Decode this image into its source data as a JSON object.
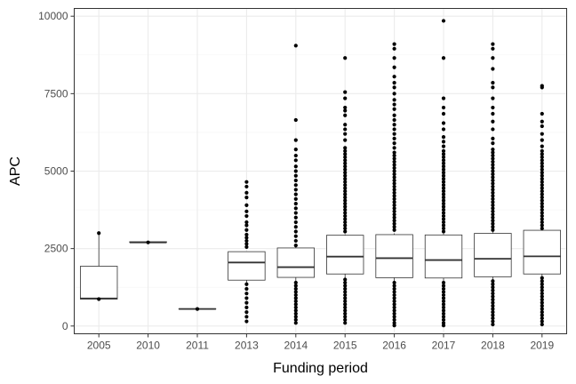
{
  "chart_data": {
    "type": "boxplot",
    "xlabel": "Funding period",
    "ylabel": "APC",
    "ylim": [
      -250,
      10250
    ],
    "y_ticks": [
      0,
      2500,
      5000,
      7500,
      10000
    ],
    "y_tick_labels": [
      "0",
      "2500",
      "5000",
      "7500",
      "10000"
    ],
    "grid": true,
    "categories": [
      "2005",
      "2010",
      "2011",
      "2013",
      "2014",
      "2015",
      "2016",
      "2017",
      "2018",
      "2019"
    ],
    "boxes": [
      {
        "category": "2005",
        "whisker_low": 870,
        "q1": 870,
        "median": 890,
        "q3": 1930,
        "whisker_high": 3000
      },
      {
        "category": "2010",
        "whisker_low": 2700,
        "q1": 2700,
        "median": 2700,
        "q3": 2720,
        "whisker_high": 2720
      },
      {
        "category": "2011",
        "whisker_low": 550,
        "q1": 550,
        "median": 550,
        "q3": 560,
        "whisker_high": 560
      },
      {
        "category": "2013",
        "whisker_low": 1400,
        "q1": 1480,
        "median": 2050,
        "q3": 2400,
        "whisker_high": 2400
      },
      {
        "category": "2014",
        "whisker_low": 1450,
        "q1": 1570,
        "median": 1900,
        "q3": 2520,
        "whisker_high": 2560
      },
      {
        "category": "2015",
        "whisker_low": 1550,
        "q1": 1680,
        "median": 2240,
        "q3": 2930,
        "whisker_high": 2960
      },
      {
        "category": "2016",
        "whisker_low": 1450,
        "q1": 1560,
        "median": 2190,
        "q3": 2950,
        "whisker_high": 2990
      },
      {
        "category": "2017",
        "whisker_low": 1440,
        "q1": 1550,
        "median": 2130,
        "q3": 2940,
        "whisker_high": 2980
      },
      {
        "category": "2018",
        "whisker_low": 1470,
        "q1": 1590,
        "median": 2170,
        "q3": 2990,
        "whisker_high": 3030
      },
      {
        "category": "2019",
        "whisker_low": 1560,
        "q1": 1680,
        "median": 2250,
        "q3": 3090,
        "whisker_high": 3130
      }
    ],
    "outliers": [
      {
        "category": "2005",
        "values": [
          3000,
          870
        ]
      },
      {
        "category": "2010",
        "values": [
          2700
        ]
      },
      {
        "category": "2011",
        "values": [
          550
        ]
      },
      {
        "category": "2013",
        "values": [
          4650,
          4500,
          4300,
          4150,
          3900,
          3700,
          3550,
          3350,
          3250,
          3100,
          2950,
          2850,
          2750,
          2650,
          2550,
          1350,
          1200,
          1050,
          900,
          750,
          600,
          450,
          300,
          150
        ]
      },
      {
        "category": "2014",
        "values": [
          9050,
          6650,
          6000,
          5700,
          5500,
          5350,
          5150,
          5000,
          4850,
          4700,
          4550,
          4400,
          4250,
          4100,
          3950,
          3800,
          3650,
          3500,
          3350,
          3200,
          3050,
          2900,
          2750,
          2600,
          1400,
          1300,
          1200,
          1100,
          1000,
          900,
          800,
          700,
          600,
          500,
          400,
          300,
          200,
          100
        ]
      },
      {
        "category": "2015",
        "values": [
          8650,
          7550,
          7350,
          7050,
          6950,
          6800,
          6500,
          6350,
          6200,
          6000,
          5750,
          5650,
          5550,
          5450,
          5350,
          5250,
          5150,
          5050,
          4950,
          4850,
          4750,
          4650,
          4550,
          4450,
          4350,
          4250,
          4150,
          4050,
          3950,
          3850,
          3750,
          3650,
          3550,
          3450,
          3350,
          3250,
          3150,
          3050,
          1500,
          1400,
          1300,
          1200,
          1100,
          1000,
          900,
          800,
          700,
          600,
          500,
          400,
          300,
          200,
          100
        ]
      },
      {
        "category": "2016",
        "values": [
          9100,
          8950,
          8650,
          8350,
          8050,
          7850,
          7700,
          7500,
          7300,
          7150,
          7000,
          6800,
          6650,
          6500,
          6350,
          6200,
          6050,
          5900,
          5750,
          5600,
          5500,
          5400,
          5300,
          5200,
          5100,
          5000,
          4900,
          4800,
          4700,
          4600,
          4500,
          4400,
          4300,
          4200,
          4100,
          4000,
          3900,
          3800,
          3700,
          3600,
          3500,
          3400,
          3300,
          3200,
          3100,
          1400,
          1300,
          1200,
          1100,
          1000,
          900,
          800,
          700,
          600,
          500,
          400,
          300,
          200,
          100,
          20
        ]
      },
      {
        "category": "2017",
        "values": [
          9850,
          8650,
          7350,
          7050,
          6850,
          6550,
          6350,
          6100,
          5950,
          5800,
          5650,
          5550,
          5450,
          5350,
          5250,
          5150,
          5050,
          4950,
          4850,
          4750,
          4650,
          4550,
          4450,
          4350,
          4250,
          4150,
          4050,
          3950,
          3850,
          3750,
          3650,
          3550,
          3450,
          3350,
          3250,
          3150,
          3050,
          1400,
          1300,
          1200,
          1100,
          1000,
          900,
          800,
          700,
          600,
          500,
          400,
          300,
          200,
          100,
          20
        ]
      },
      {
        "category": "2018",
        "values": [
          9100,
          8950,
          8650,
          8300,
          7850,
          7700,
          7350,
          7050,
          6850,
          6600,
          6350,
          6050,
          5900,
          5700,
          5600,
          5500,
          5400,
          5300,
          5200,
          5100,
          5000,
          4900,
          4800,
          4700,
          4600,
          4500,
          4400,
          4300,
          4200,
          4100,
          4000,
          3900,
          3800,
          3700,
          3600,
          3500,
          3400,
          3300,
          3200,
          3100,
          1450,
          1350,
          1250,
          1150,
          1050,
          950,
          850,
          750,
          650,
          550,
          450,
          350,
          250,
          150,
          50
        ]
      },
      {
        "category": "2019",
        "values": [
          7750,
          7700,
          6850,
          6600,
          6450,
          6200,
          6000,
          5800,
          5650,
          5550,
          5450,
          5350,
          5250,
          5150,
          5050,
          4950,
          4850,
          4750,
          4650,
          4550,
          4450,
          4350,
          4250,
          4150,
          4050,
          3950,
          3850,
          3750,
          3650,
          3550,
          3450,
          3350,
          3250,
          3150,
          1550,
          1450,
          1350,
          1250,
          1150,
          1050,
          950,
          850,
          750,
          650,
          550,
          450,
          350,
          250,
          150,
          50
        ]
      }
    ],
    "colors": {
      "panel_border": "#333333",
      "grid_major": "#ebebeb",
      "grid_minor": "#f5f5f5",
      "box_stroke": "#333333",
      "point_fill": "#000000",
      "tick_text": "#4d4d4d",
      "axis_title": "#000000"
    }
  }
}
